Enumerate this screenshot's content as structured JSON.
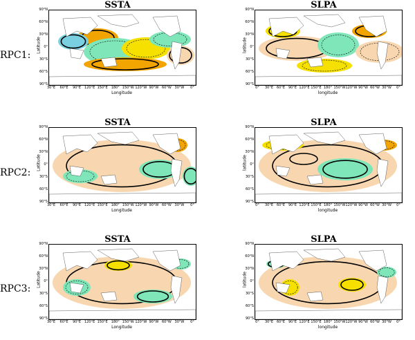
{
  "rows": [
    {
      "label": "RPC1:"
    },
    {
      "label": "RPC2:"
    },
    {
      "label": "RPC3:"
    }
  ],
  "panels": [
    {
      "title": "SSTA",
      "xlabel": "Longitude",
      "ylabel": "Latitude",
      "xticks": [
        "30°E",
        "60°E",
        "90°E",
        "120°E",
        "150°E",
        "180°",
        "150°W",
        "120°W",
        "90°W",
        "60°W",
        "30°W",
        "0°"
      ]
    },
    {
      "title": "SLPA",
      "xlabel": "longitude",
      "ylabel": "latitude",
      "xticks": [
        "0°",
        "30°E",
        "60°E",
        "90°E",
        "120°E",
        "150°E",
        "180°",
        "150°W",
        "120°W",
        "90°W",
        "60°W",
        "30°W",
        "0°"
      ]
    },
    {
      "title": "SSTA",
      "xlabel": "Longitude",
      "ylabel": "Latitude",
      "xticks": [
        "30°E",
        "60°E",
        "90°E",
        "120°E",
        "150°E",
        "180°",
        "150°W",
        "120°W",
        "90°W",
        "60°W",
        "30°W",
        "0°"
      ]
    },
    {
      "title": "SLPA",
      "xlabel": "longitude",
      "ylabel": "latitude",
      "xticks": [
        "0°",
        "30°E",
        "60°E",
        "90°E",
        "120°E",
        "150°E",
        "180°",
        "150°W",
        "120°W",
        "90°W",
        "60°W",
        "30°W",
        "0°"
      ]
    },
    {
      "title": "SSTA",
      "xlabel": "Longitude",
      "ylabel": "Latitude",
      "xticks": [
        "30°E",
        "60°E",
        "90°E",
        "120°E",
        "150°E",
        "180°",
        "150°W",
        "120°W",
        "90°W",
        "60°W",
        "30°W",
        "0°"
      ]
    },
    {
      "title": "SLPA",
      "xlabel": "longitude",
      "ylabel": "latitude",
      "xticks": [
        "0°",
        "30°E",
        "60°E",
        "90°E",
        "120°E",
        "150°E",
        "180°",
        "150°W",
        "120°W",
        "90°W",
        "60°W",
        "30°W",
        "0°"
      ]
    }
  ],
  "yticks": [
    "90°N",
    "60°N",
    "30°N",
    "0°",
    "30°S",
    "60°S",
    "90°S"
  ],
  "colors": {
    "positive_strong": "#f2a400",
    "positive": "#f5e000",
    "positive_weak": "#f8d7b0",
    "negative": "#7ee6b8",
    "negative_strong": "#7ad0e0",
    "land": "#ffffff",
    "contour": "#000000"
  }
}
